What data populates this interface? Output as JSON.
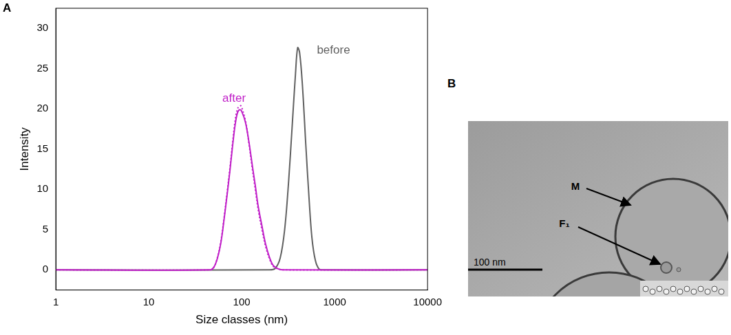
{
  "chart_data": {
    "type": "line",
    "panel": "A",
    "x_label": "Size classes (nm)",
    "y_label": "Intensity",
    "log": "x",
    "grid": false,
    "tick_labels": true,
    "xlim": [
      1,
      10000
    ],
    "xticks": [
      1,
      10,
      100,
      1000,
      10000
    ],
    "ylim": [
      -2.5,
      32.5
    ],
    "yticks": [
      0,
      5,
      10,
      15,
      20,
      25,
      30
    ],
    "series": [
      {
        "name": "after",
        "color": "#c01fc8",
        "line_style": "solid",
        "x": [
          1,
          45,
          50,
          55,
          60,
          65,
          70,
          75,
          80,
          85,
          90,
          95,
          100,
          110,
          120,
          130,
          140,
          150,
          165,
          180,
          200,
          220,
          250,
          280,
          10000
        ],
        "values": [
          0,
          0,
          0.3,
          1.5,
          3.5,
          6.5,
          9.5,
          12.5,
          15.5,
          18,
          19.5,
          19.9,
          19.7,
          18.3,
          15.8,
          13,
          10.5,
          8,
          5.5,
          3.3,
          1.5,
          0.5,
          0.1,
          0,
          0
        ]
      },
      {
        "color": "#c01fc8",
        "line_style": "dotted",
        "x": [
          1,
          45,
          50,
          55,
          60,
          65,
          70,
          75,
          80,
          85,
          90,
          97,
          100,
          110,
          120,
          130,
          140,
          150,
          165,
          180,
          200,
          220,
          250,
          280,
          10000
        ],
        "values": [
          0,
          0,
          0.3,
          1.6,
          3.7,
          6.7,
          9.8,
          12.8,
          15.9,
          18.5,
          20,
          20.4,
          20.2,
          18.5,
          15.6,
          12.6,
          10,
          7.6,
          5,
          3,
          1.3,
          0.4,
          0.1,
          0,
          0
        ]
      },
      {
        "name": "before",
        "color": "#606060",
        "line_style": "solid",
        "x": [
          1,
          200,
          230,
          260,
          290,
          320,
          350,
          380,
          400,
          420,
          450,
          490,
          530,
          570,
          620,
          680,
          750,
          10000
        ],
        "values": [
          0,
          0,
          0.2,
          1.5,
          5,
          11,
          18,
          24.5,
          27.6,
          27,
          23,
          15.5,
          9,
          4,
          1.2,
          0.1,
          0,
          0
        ]
      }
    ]
  },
  "panel_b": {
    "letter": "B",
    "labels": [
      "M",
      "F₁"
    ],
    "scale_bar": "100 nm"
  }
}
